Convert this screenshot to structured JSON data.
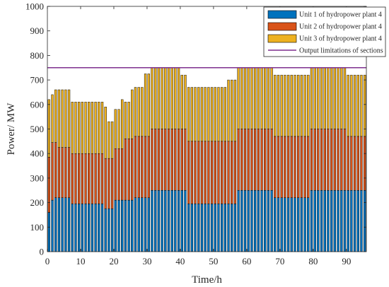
{
  "chart_data": {
    "type": "bar",
    "stacked": true,
    "xlabel": "Time/h",
    "ylabel": "Power/ MW",
    "xlim": [
      0,
      96
    ],
    "ylim": [
      0,
      1000
    ],
    "xticks": [
      0,
      10,
      20,
      30,
      40,
      50,
      60,
      70,
      80,
      90
    ],
    "yticks": [
      0,
      100,
      200,
      300,
      400,
      500,
      600,
      700,
      800,
      900,
      1000
    ],
    "grid": false,
    "legend_position": "top-right",
    "x": [
      0,
      1,
      2,
      3,
      4,
      5,
      6,
      7,
      8,
      9,
      10,
      11,
      12,
      13,
      14,
      15,
      16,
      17,
      18,
      19,
      20,
      21,
      22,
      23,
      24,
      25,
      26,
      27,
      28,
      29,
      30,
      31,
      32,
      33,
      34,
      35,
      36,
      37,
      38,
      39,
      40,
      41,
      42,
      43,
      44,
      45,
      46,
      47,
      48,
      49,
      50,
      51,
      52,
      53,
      54,
      55,
      56,
      57,
      58,
      59,
      60,
      61,
      62,
      63,
      64,
      65,
      66,
      67,
      68,
      69,
      70,
      71,
      72,
      73,
      74,
      75,
      76,
      77,
      78,
      79,
      80,
      81,
      82,
      83,
      84,
      85,
      86,
      87,
      88,
      89,
      90,
      91,
      92,
      93,
      94,
      95
    ],
    "series": [
      {
        "name": "Unit 1 of hydropower plant 4",
        "color": "#0072BD",
        "values": [
          160,
          210,
          220,
          220,
          220,
          220,
          220,
          195,
          195,
          195,
          195,
          195,
          195,
          195,
          195,
          195,
          195,
          175,
          175,
          175,
          210,
          210,
          210,
          210,
          210,
          210,
          220,
          220,
          220,
          220,
          220,
          250,
          250,
          250,
          250,
          250,
          250,
          250,
          250,
          250,
          250,
          250,
          195,
          195,
          195,
          195,
          195,
          195,
          195,
          195,
          195,
          195,
          195,
          195,
          195,
          195,
          195,
          250,
          250,
          250,
          250,
          250,
          250,
          250,
          250,
          250,
          250,
          250,
          220,
          220,
          220,
          220,
          220,
          220,
          220,
          220,
          220,
          220,
          220,
          250,
          250,
          250,
          250,
          250,
          250,
          250,
          250,
          250,
          250,
          250,
          250,
          250,
          250,
          250,
          250,
          250
        ]
      },
      {
        "name": "Unit 2 of hydropower plant 4",
        "color": "#D95319",
        "values": [
          225,
          235,
          225,
          205,
          205,
          205,
          205,
          205,
          205,
          205,
          205,
          205,
          205,
          205,
          205,
          205,
          205,
          205,
          205,
          205,
          210,
          210,
          210,
          250,
          250,
          250,
          250,
          250,
          250,
          250,
          250,
          250,
          250,
          250,
          250,
          250,
          250,
          250,
          250,
          250,
          250,
          250,
          255,
          255,
          255,
          255,
          255,
          255,
          255,
          255,
          255,
          255,
          255,
          255,
          255,
          255,
          255,
          250,
          250,
          250,
          250,
          250,
          250,
          250,
          250,
          250,
          250,
          250,
          250,
          250,
          250,
          250,
          250,
          250,
          250,
          250,
          250,
          250,
          250,
          250,
          250,
          250,
          250,
          250,
          250,
          250,
          250,
          250,
          250,
          250,
          220,
          220,
          220,
          220,
          220,
          220
        ]
      },
      {
        "name": "Unit 3 of hydropower plant 4",
        "color": "#EDB120",
        "values": [
          235,
          195,
          215,
          235,
          235,
          235,
          235,
          210,
          210,
          210,
          210,
          210,
          210,
          210,
          210,
          210,
          210,
          210,
          150,
          150,
          160,
          160,
          200,
          150,
          150,
          200,
          200,
          200,
          200,
          255,
          255,
          250,
          250,
          250,
          250,
          250,
          250,
          250,
          250,
          250,
          220,
          220,
          220,
          220,
          220,
          220,
          220,
          220,
          220,
          220,
          220,
          220,
          220,
          220,
          250,
          250,
          250,
          250,
          250,
          250,
          250,
          250,
          250,
          250,
          250,
          250,
          250,
          250,
          250,
          250,
          250,
          250,
          250,
          250,
          250,
          250,
          250,
          250,
          250,
          250,
          250,
          250,
          250,
          250,
          250,
          250,
          250,
          250,
          250,
          250,
          250,
          250,
          250,
          250,
          250,
          250
        ]
      }
    ],
    "reference_line": {
      "name": "Output limitations of sections",
      "color": "#7E2F8E",
      "y": 750
    }
  }
}
